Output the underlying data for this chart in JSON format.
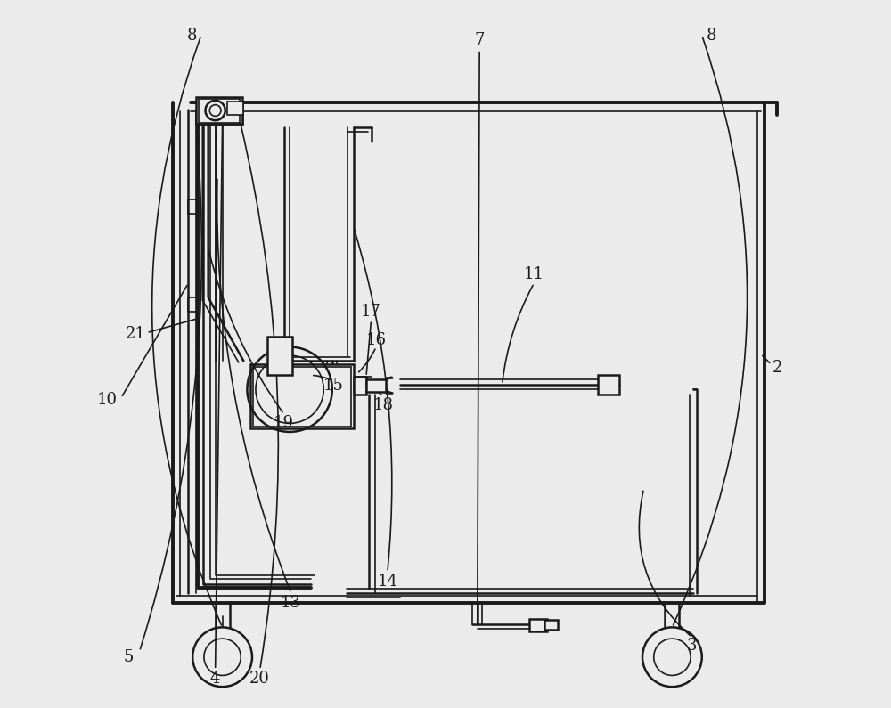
{
  "bg_color": "#ebebeb",
  "line_color": "#1a1a1a",
  "lw_thin": 1.2,
  "lw_med": 1.8,
  "lw_thick": 2.8,
  "figsize": [
    10.0,
    7.95
  ],
  "dpi": 100,
  "labels": {
    "2": [
      0.965,
      0.48,
      "2"
    ],
    "3": [
      0.845,
      0.095,
      "3"
    ],
    "4": [
      0.175,
      0.045,
      "4"
    ],
    "5": [
      0.055,
      0.075,
      "5"
    ],
    "7": [
      0.548,
      0.945,
      "7"
    ],
    "8a": [
      0.145,
      0.952,
      "8"
    ],
    "8b": [
      0.875,
      0.952,
      "8"
    ],
    "10": [
      0.025,
      0.44,
      "10"
    ],
    "11": [
      0.625,
      0.615,
      "11"
    ],
    "13": [
      0.285,
      0.155,
      "13"
    ],
    "14": [
      0.415,
      0.185,
      "14"
    ],
    "15": [
      0.345,
      0.46,
      "15"
    ],
    "16": [
      0.405,
      0.525,
      "16"
    ],
    "17": [
      0.395,
      0.565,
      "17"
    ],
    "18": [
      0.41,
      0.435,
      "18"
    ],
    "19": [
      0.275,
      0.41,
      "19"
    ],
    "20": [
      0.24,
      0.045,
      "20"
    ],
    "21": [
      0.065,
      0.535,
      "21"
    ]
  }
}
